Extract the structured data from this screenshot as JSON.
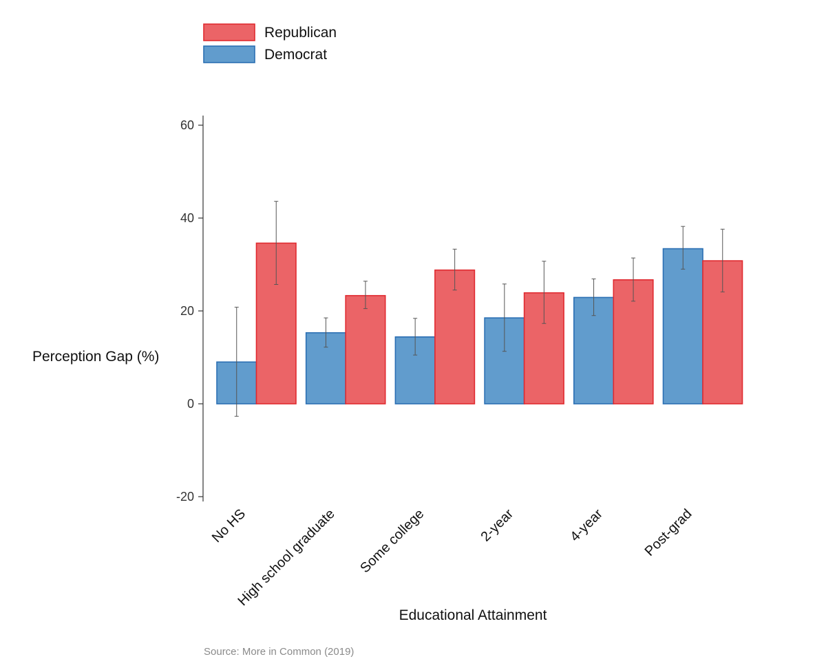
{
  "chart_data": {
    "type": "bar",
    "title": "",
    "xlabel": "Educational Attainment",
    "ylabel": "Perception Gap (%)",
    "ylim": [
      -20,
      60
    ],
    "yticks": [
      -20,
      0,
      20,
      40,
      60
    ],
    "grid": false,
    "legend_position": "top-left",
    "categories": [
      "No HS",
      "High school graduate",
      "Some college",
      "2-year",
      "4-year",
      "Post-grad"
    ],
    "series": [
      {
        "name": "Democrat",
        "color": "#619CCD",
        "edge_color": "#2B6FB3",
        "values": [
          9,
          15.3,
          14.4,
          18.5,
          22.9,
          33.4
        ],
        "error_low": [
          -2.7,
          12.2,
          10.5,
          11.3,
          19.0,
          29.0
        ],
        "error_high": [
          20.8,
          18.5,
          18.4,
          25.8,
          26.9,
          38.2
        ]
      },
      {
        "name": "Republican",
        "color": "#EB6467",
        "edge_color": "#E02A30",
        "values": [
          34.6,
          23.3,
          28.8,
          23.9,
          26.7,
          30.8
        ],
        "error_low": [
          25.7,
          20.5,
          24.5,
          17.3,
          22.1,
          24.1
        ],
        "error_high": [
          43.6,
          26.4,
          33.3,
          30.7,
          31.4,
          37.6
        ]
      }
    ],
    "legend_order": [
      "Republican",
      "Democrat"
    ],
    "source": "Source: More in Common (2019)"
  }
}
